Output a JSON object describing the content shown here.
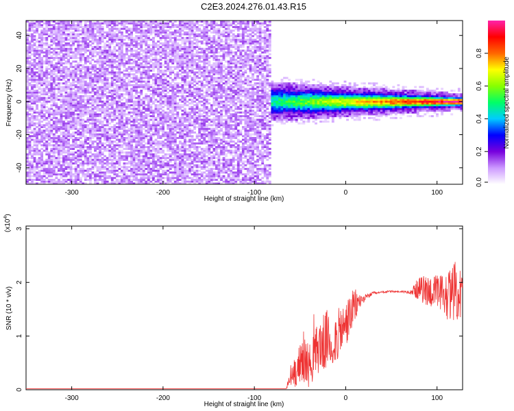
{
  "title": "C2E3.2024.276.01.43.R15",
  "chart_data": [
    {
      "type": "heatmap",
      "title": "C2E3.2024.276.01.43.R15",
      "xlabel": "Height of straight line (km)",
      "ylabel": "Frequency (Hz)",
      "xlim": [
        -350,
        128
      ],
      "ylim": [
        -50,
        49
      ],
      "xticks": [
        "-300",
        "-200",
        "-100",
        "0",
        "100"
      ],
      "xtick_values": [
        -300,
        -200,
        -100,
        0,
        100
      ],
      "yticks": [
        "-40",
        "-20",
        "0",
        "20",
        "40"
      ],
      "ytick_values": [
        -40,
        -20,
        0,
        20,
        40
      ],
      "noise_region_x": [
        -350,
        -83
      ],
      "signal_region_x": [
        -83,
        128
      ],
      "signal_center_freq_hz": 0,
      "signal_width_hz_range": [
        3,
        10
      ],
      "colorbar": {
        "label": "Normalized spectral amplitude",
        "range": [
          0.0,
          1.0
        ],
        "ticks": [
          "0.0",
          "0.2",
          "0.4",
          "0.6",
          "0.8"
        ],
        "tick_values": [
          0.0,
          0.2,
          0.4,
          0.6,
          0.8
        ],
        "colors": [
          "#ffffff",
          "#cc99ff",
          "#7700dd",
          "#0000ff",
          "#00ccff",
          "#00ff66",
          "#88ff00",
          "#ffff00",
          "#ff6600",
          "#ff0000",
          "#ff22aa"
        ]
      }
    },
    {
      "type": "line",
      "xlabel": "Height of straight line (km)",
      "ylabel": "SNR (10 * v/v)",
      "yscale_label": "(x10",
      "yscale_exp": "4",
      "yscale_close": ")",
      "xlim": [
        -350,
        128
      ],
      "ylim": [
        0,
        3.05
      ],
      "xticks": [
        "-300",
        "-200",
        "-100",
        "0",
        "100"
      ],
      "xtick_values": [
        -300,
        -200,
        -100,
        0,
        100
      ],
      "yticks": [
        "0",
        "1",
        "2",
        "3"
      ],
      "ytick_values": [
        0,
        1,
        2,
        3
      ],
      "series": [
        {
          "color": "#ee3333",
          "x": [
            -350,
            -200,
            -100,
            -65,
            -60,
            -55,
            -50,
            -45,
            -40,
            -35,
            -30,
            -25,
            -20,
            -15,
            -10,
            -5,
            0,
            5,
            10,
            15,
            20,
            25,
            30,
            35,
            40,
            50,
            60,
            70,
            75,
            80,
            90,
            100,
            110,
            120,
            128
          ],
          "y": [
            0.02,
            0.02,
            0.02,
            0.02,
            0.25,
            0.35,
            0.5,
            0.55,
            0.45,
            0.6,
            0.8,
            0.85,
            0.95,
            0.8,
            1.0,
            1.1,
            1.2,
            1.4,
            1.55,
            1.65,
            1.7,
            1.75,
            1.8,
            1.8,
            1.82,
            1.83,
            1.83,
            1.82,
            1.85,
            1.88,
            1.85,
            1.8,
            1.75,
            1.85,
            1.7
          ],
          "spread": [
            0,
            0,
            0,
            0,
            0.25,
            0.3,
            0.35,
            0.5,
            0.4,
            0.45,
            0.5,
            0.55,
            0.55,
            0.45,
            0.5,
            0.45,
            0.45,
            0.4,
            0.35,
            0.15,
            0.07,
            0.04,
            0.03,
            0.02,
            0.02,
            0.02,
            0.02,
            0.03,
            0.12,
            0.22,
            0.3,
            0.35,
            0.45,
            0.55,
            0.55
          ]
        }
      ]
    }
  ]
}
